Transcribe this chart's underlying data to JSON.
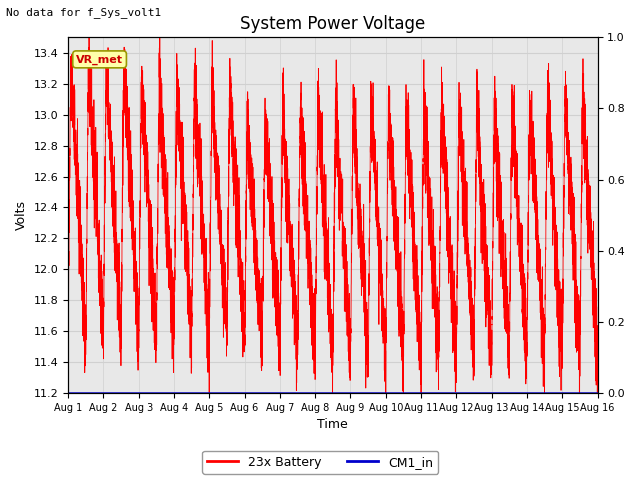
{
  "title": "System Power Voltage",
  "no_data_text": "No data for f_Sys_volt1",
  "xlabel": "Time",
  "ylabel": "Volts",
  "xlim_days": [
    0,
    15
  ],
  "ylim_left": [
    11.2,
    13.5
  ],
  "ylim_right": [
    0.0,
    1.0
  ],
  "yticks_left": [
    11.2,
    11.4,
    11.6,
    11.8,
    12.0,
    12.2,
    12.4,
    12.6,
    12.8,
    13.0,
    13.2,
    13.4
  ],
  "yticks_right": [
    0.0,
    0.2,
    0.4,
    0.6,
    0.8,
    1.0
  ],
  "xtick_labels": [
    "Aug 1",
    "Aug 2",
    "Aug 3",
    "Aug 4",
    "Aug 5",
    "Aug 6",
    "Aug 7",
    "Aug 8",
    "Aug 9",
    "Aug 10",
    "Aug 11",
    "Aug 12",
    "Aug 13",
    "Aug 14",
    "Aug 15",
    "Aug 16"
  ],
  "grid_color": "#d0d0d0",
  "plot_bg_color": "#e8e8e8",
  "fig_bg_color": "#ffffff",
  "line_color_battery": "#ff0000",
  "line_color_cm1": "#0000cc",
  "legend_labels": [
    "23x Battery",
    "CM1_in"
  ],
  "vr_met_label": "VR_met",
  "vr_met_bg": "#ffffaa",
  "vr_met_border": "#999900",
  "vr_met_text_color": "#cc0000",
  "title_fontsize": 12,
  "axis_label_fontsize": 9,
  "tick_fontsize": 8,
  "no_data_fontsize": 8,
  "legend_fontsize": 9
}
